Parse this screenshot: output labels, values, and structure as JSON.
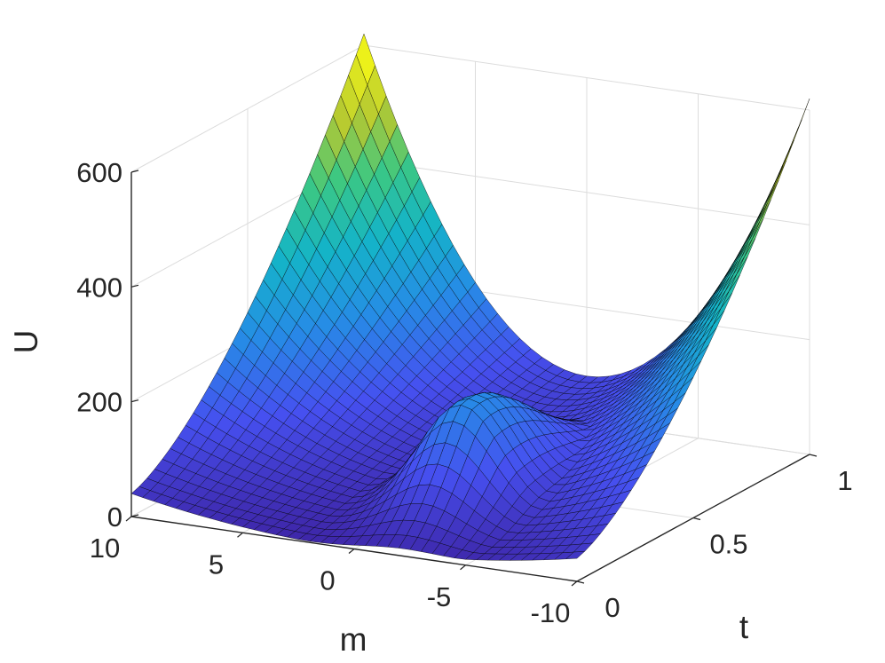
{
  "chart_data": {
    "type": "surface",
    "title": "",
    "xlabel": "m",
    "ylabel": "t",
    "zlabel": "U",
    "xlim": [
      -10,
      10
    ],
    "ylim": [
      0,
      1
    ],
    "zlim": [
      0,
      600
    ],
    "x_ticks": [
      {
        "value": 10,
        "label": "10"
      },
      {
        "value": 5,
        "label": "5"
      },
      {
        "value": 0,
        "label": "0"
      },
      {
        "value": -5,
        "label": "-5"
      },
      {
        "value": -10,
        "label": "-10"
      }
    ],
    "y_ticks": [
      {
        "value": 0,
        "label": "0"
      },
      {
        "value": 0.5,
        "label": "0.5"
      },
      {
        "value": 1,
        "label": "1"
      }
    ],
    "z_ticks": [
      {
        "value": 0,
        "label": "0"
      },
      {
        "value": 200,
        "label": "200"
      },
      {
        "value": 400,
        "label": "400"
      },
      {
        "value": 600,
        "label": "600"
      }
    ],
    "grid": true,
    "colormap": "parula",
    "colormap_low": "#3e26a8",
    "colormap_high": "#f9fb15",
    "edge_color": "#000000",
    "surface": {
      "corner_values": [
        {
          "m": 10,
          "t": 0,
          "U": 40
        },
        {
          "m": -10,
          "t": 0,
          "U": 40
        },
        {
          "m": 10,
          "t": 1,
          "U": 620
        },
        {
          "m": -10,
          "t": 1,
          "U": 620
        }
      ],
      "ridge": {
        "m": -2,
        "t": 0.3,
        "U": 190
      },
      "valley_at_t1": {
        "m": 0,
        "U": 80
      }
    }
  }
}
